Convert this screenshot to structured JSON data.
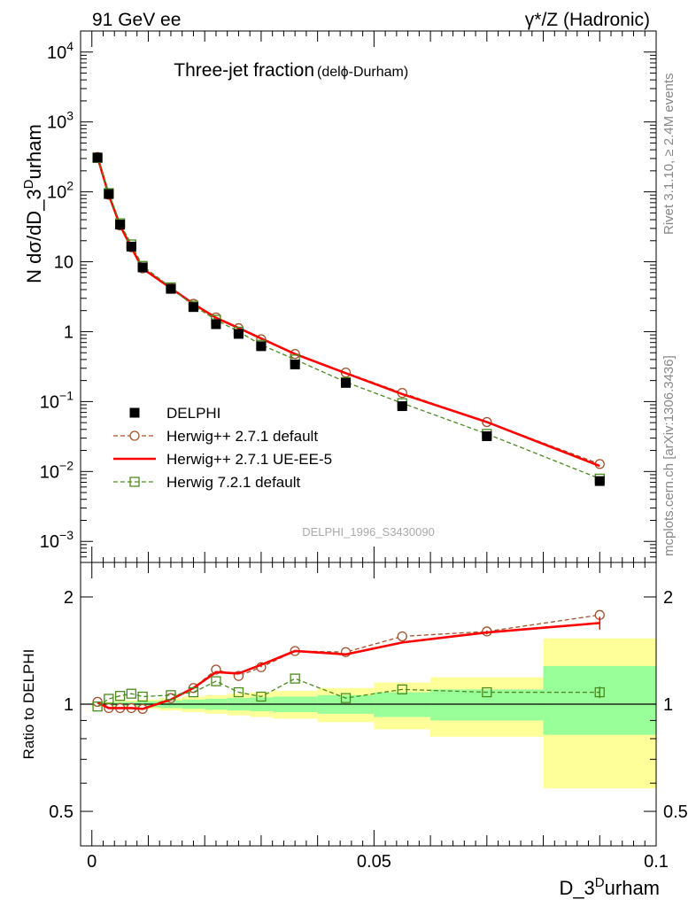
{
  "header": {
    "left": "91 GeV ee",
    "right": "γ*/Z (Hadronic)"
  },
  "side": {
    "rivet": "Rivet 3.1.10, ≥ 2.4M events",
    "mcplots": "mcplots.cern.ch [arXiv:1306.3436]"
  },
  "chart_data": [
    {
      "type": "line",
      "title": "Three-jet fraction",
      "title_sub": "(delϕ-Durham)",
      "watermark": "DELPHI_1996_S3430090",
      "ylabel": "N dσ/dD_3^Durham",
      "yscale": "log",
      "ylim": [
        0.0005,
        20000
      ],
      "xlim": [
        -0.002,
        0.1
      ],
      "ytick_labels": [
        {
          "v": 0.001,
          "base": "10",
          "exp": "−3"
        },
        {
          "v": 0.01,
          "base": "10",
          "exp": "−2"
        },
        {
          "v": 0.1,
          "base": "10",
          "exp": "−1"
        },
        {
          "v": 1,
          "base": "1",
          "exp": ""
        },
        {
          "v": 10,
          "base": "10",
          "exp": ""
        },
        {
          "v": 100,
          "base": "10",
          "exp": "2"
        },
        {
          "v": 1000,
          "base": "10",
          "exp": "3"
        },
        {
          "v": 10000,
          "base": "10",
          "exp": "4"
        }
      ],
      "x": [
        0.001,
        0.003,
        0.005,
        0.007,
        0.009,
        0.014,
        0.018,
        0.022,
        0.026,
        0.03,
        0.036,
        0.045,
        0.055,
        0.07,
        0.09
      ],
      "series": [
        {
          "name": "DELPHI",
          "style": "data",
          "color": "#000000",
          "values": [
            310,
            93,
            34,
            16.5,
            8.3,
            4.1,
            2.25,
            1.28,
            0.93,
            0.62,
            0.34,
            0.185,
            0.086,
            0.032,
            0.0073
          ]
        },
        {
          "name": "Herwig++ 2.7.1 default",
          "style": "dashed-circle",
          "color": "#a0522d",
          "values": [
            315,
            91,
            33,
            16.1,
            8.05,
            4.25,
            2.5,
            1.6,
            1.12,
            0.78,
            0.48,
            0.26,
            0.133,
            0.051,
            0.0128
          ]
        },
        {
          "name": "Herwig++ 2.7.1 UE-EE-5",
          "style": "solid",
          "color": "#ff0000",
          "values": [
            314,
            90.5,
            33,
            16.0,
            8.0,
            4.2,
            2.5,
            1.58,
            1.13,
            0.8,
            0.48,
            0.255,
            0.128,
            0.051,
            0.012
          ]
        },
        {
          "name": "Herwig 7.2.1 default",
          "style": "dashed-square",
          "color": "#4a8a20",
          "values": [
            305,
            96,
            35.5,
            17.7,
            8.7,
            4.3,
            2.35,
            1.48,
            1.0,
            0.65,
            0.4,
            0.19,
            0.095,
            0.0345,
            0.0079
          ]
        }
      ]
    },
    {
      "type": "line",
      "ylabel": "Ratio to DELPHI",
      "xlabel": "D_3^Durham",
      "yscale": "log",
      "ylim": [
        0.4,
        2.5
      ],
      "xlim": [
        -0.002,
        0.1
      ],
      "xtick_labels": [
        {
          "v": 0,
          "t": "0"
        },
        {
          "v": 0.05,
          "t": "0.05"
        },
        {
          "v": 0.1,
          "t": "0.1"
        }
      ],
      "ytick_labels": [
        {
          "v": 0.5,
          "t": "0.5"
        },
        {
          "v": 1,
          "t": "1"
        },
        {
          "v": 2,
          "t": "2"
        }
      ],
      "bands": [
        {
          "x0": 0.0,
          "x1": 0.002,
          "green": [
            0.99,
            1.01
          ],
          "yellow": [
            0.985,
            1.015
          ]
        },
        {
          "x0": 0.002,
          "x1": 0.004,
          "green": [
            0.99,
            1.01
          ],
          "yellow": [
            0.985,
            1.015
          ]
        },
        {
          "x0": 0.004,
          "x1": 0.006,
          "green": [
            0.985,
            1.015
          ],
          "yellow": [
            0.98,
            1.02
          ]
        },
        {
          "x0": 0.006,
          "x1": 0.008,
          "green": [
            0.985,
            1.015
          ],
          "yellow": [
            0.975,
            1.025
          ]
        },
        {
          "x0": 0.008,
          "x1": 0.012,
          "green": [
            0.98,
            1.02
          ],
          "yellow": [
            0.97,
            1.03
          ]
        },
        {
          "x0": 0.012,
          "x1": 0.016,
          "green": [
            0.975,
            1.025
          ],
          "yellow": [
            0.96,
            1.04
          ]
        },
        {
          "x0": 0.016,
          "x1": 0.02,
          "green": [
            0.97,
            1.03
          ],
          "yellow": [
            0.95,
            1.05
          ]
        },
        {
          "x0": 0.02,
          "x1": 0.024,
          "green": [
            0.965,
            1.035
          ],
          "yellow": [
            0.94,
            1.06
          ]
        },
        {
          "x0": 0.024,
          "x1": 0.028,
          "green": [
            0.96,
            1.04
          ],
          "yellow": [
            0.93,
            1.07
          ]
        },
        {
          "x0": 0.028,
          "x1": 0.032,
          "green": [
            0.955,
            1.045
          ],
          "yellow": [
            0.92,
            1.08
          ]
        },
        {
          "x0": 0.032,
          "x1": 0.04,
          "green": [
            0.95,
            1.05
          ],
          "yellow": [
            0.91,
            1.09
          ]
        },
        {
          "x0": 0.04,
          "x1": 0.05,
          "green": [
            0.94,
            1.06
          ],
          "yellow": [
            0.89,
            1.11
          ]
        },
        {
          "x0": 0.05,
          "x1": 0.06,
          "green": [
            0.92,
            1.08
          ],
          "yellow": [
            0.85,
            1.15
          ]
        },
        {
          "x0": 0.06,
          "x1": 0.08,
          "green": [
            0.9,
            1.1
          ],
          "yellow": [
            0.81,
            1.19
          ]
        },
        {
          "x0": 0.08,
          "x1": 0.1,
          "green": [
            0.82,
            1.28
          ],
          "yellow": [
            0.58,
            1.53
          ]
        }
      ],
      "x": [
        0.001,
        0.003,
        0.005,
        0.007,
        0.009,
        0.014,
        0.018,
        0.022,
        0.026,
        0.03,
        0.036,
        0.045,
        0.055,
        0.07,
        0.09
      ],
      "series": [
        {
          "name": "Herwig++ 2.7.1 default",
          "style": "dashed-circle",
          "color": "#a0522d",
          "values": [
            1.015,
            0.975,
            0.975,
            0.975,
            0.97,
            1.04,
            1.11,
            1.25,
            1.2,
            1.27,
            1.41,
            1.4,
            1.55,
            1.6,
            1.78
          ],
          "errors": [
            0,
            0,
            0,
            0,
            0,
            0,
            0,
            0,
            0,
            0,
            0,
            0,
            0,
            0,
            0.05
          ]
        },
        {
          "name": "Herwig++ 2.7.1 UE-EE-5",
          "style": "solid",
          "color": "#ff0000",
          "values": [
            1.01,
            0.975,
            0.975,
            0.975,
            0.97,
            1.03,
            1.11,
            1.23,
            1.22,
            1.29,
            1.41,
            1.38,
            1.49,
            1.59,
            1.69
          ],
          "errors": [
            0,
            0,
            0,
            0,
            0,
            0,
            0,
            0,
            0,
            0.02,
            0,
            0,
            0,
            0.02,
            0.07
          ]
        },
        {
          "name": "Herwig 7.2.1 default",
          "style": "dashed-square",
          "color": "#4a8a20",
          "values": [
            0.985,
            1.035,
            1.055,
            1.07,
            1.05,
            1.06,
            1.08,
            1.16,
            1.08,
            1.05,
            1.18,
            1.04,
            1.1,
            1.08,
            1.08
          ],
          "errors": [
            0,
            0,
            0,
            0,
            0,
            0,
            0,
            0,
            0,
            0,
            0,
            0,
            0,
            0,
            0.04
          ]
        }
      ]
    }
  ]
}
